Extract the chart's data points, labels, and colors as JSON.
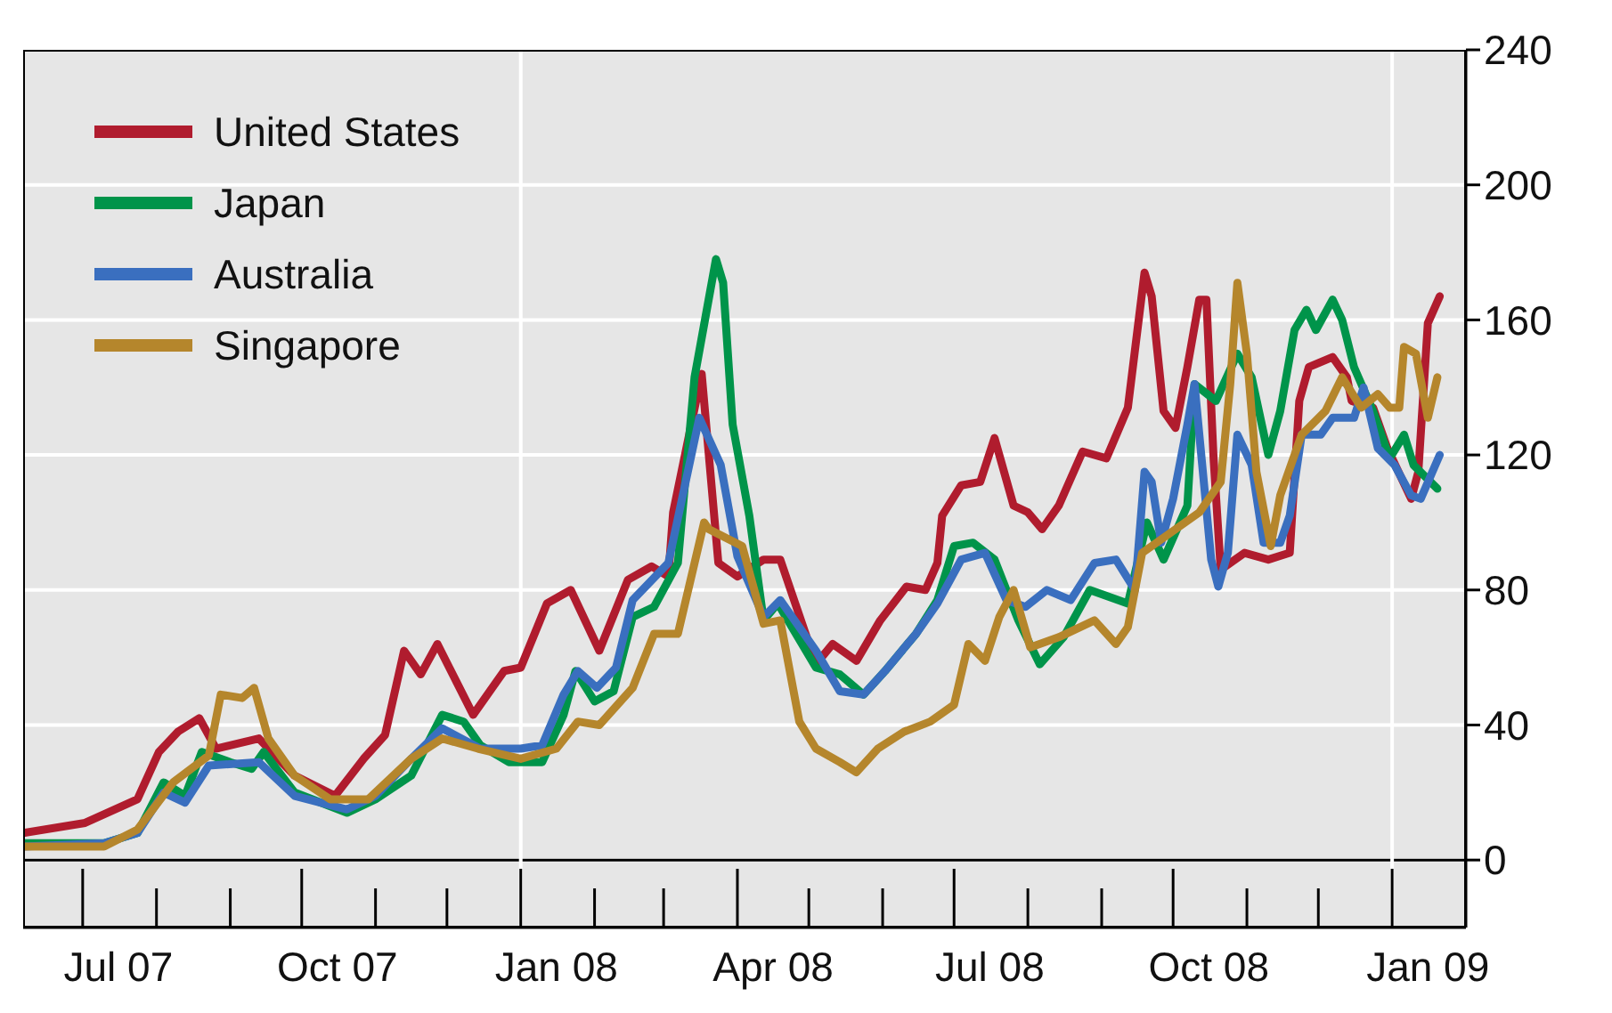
{
  "chart_data": {
    "type": "line",
    "xlim": [
      "2007-06-06",
      "2009-02-01"
    ],
    "ylim": [
      -20,
      240
    ],
    "yticks": [
      0,
      40,
      80,
      120,
      160,
      200,
      240
    ],
    "xticks": [
      {
        "value": "2007-07-16",
        "label": "Jul 07"
      },
      {
        "value": "2007-10-16",
        "label": "Oct 07"
      },
      {
        "value": "2008-01-16",
        "label": "Jan 08"
      },
      {
        "value": "2008-04-16",
        "label": "Apr 08"
      },
      {
        "value": "2008-07-16",
        "label": "Jul 08"
      },
      {
        "value": "2008-10-16",
        "label": "Oct 08"
      },
      {
        "value": "2009-01-16",
        "label": "Jan 09"
      }
    ],
    "grid": "y",
    "legend": "top left",
    "marker": "none",
    "line_style": "solid",
    "ref_lines": [
      {
        "axis": "y",
        "value": 0,
        "color": "#000000"
      },
      {
        "axis": "x",
        "value": "2008-01-01",
        "color": "#ffffff"
      },
      {
        "axis": "x",
        "value": "2009-01-01",
        "color": "#ffffff"
      }
    ],
    "series": [
      {
        "name": "United States",
        "color": "#b01c2e",
        "x": [
          "2007-06-06",
          "2007-07-02",
          "2007-07-24",
          "2007-08-02",
          "2007-08-10",
          "2007-08-19",
          "2007-08-26",
          "2007-09-13",
          "2007-09-28",
          "2007-10-15",
          "2007-10-27",
          "2007-11-05",
          "2007-11-13",
          "2007-11-20",
          "2007-11-27",
          "2007-12-12",
          "2007-12-25",
          "2008-01-01",
          "2008-01-12",
          "2008-01-22",
          "2008-02-03",
          "2008-02-15",
          "2008-02-25",
          "2008-03-03",
          "2008-03-05",
          "2008-03-17",
          "2008-03-24",
          "2008-04-01",
          "2008-04-12",
          "2008-04-19",
          "2008-05-04",
          "2008-05-11",
          "2008-05-21",
          "2008-05-31",
          "2008-06-11",
          "2008-06-19",
          "2008-06-24",
          "2008-06-26",
          "2008-07-04",
          "2008-07-12",
          "2008-07-18",
          "2008-07-26",
          "2008-08-01",
          "2008-08-07",
          "2008-08-14",
          "2008-08-24",
          "2008-09-03",
          "2008-09-12",
          "2008-09-19",
          "2008-09-22",
          "2008-09-27",
          "2008-10-02",
          "2008-10-07",
          "2008-10-12",
          "2008-10-15",
          "2008-10-18",
          "2008-10-21",
          "2008-10-31",
          "2008-11-10",
          "2008-11-19",
          "2008-11-23",
          "2008-11-27",
          "2008-12-07",
          "2008-12-13",
          "2008-12-15",
          "2008-12-24",
          "2008-12-30",
          "2009-01-09",
          "2009-01-12",
          "2009-01-16",
          "2009-01-21"
        ],
        "values": [
          8,
          11,
          18,
          32,
          38,
          42,
          33,
          36,
          25,
          19,
          30,
          37,
          62,
          55,
          64,
          43,
          56,
          57,
          76,
          80,
          62,
          83,
          87,
          84,
          103,
          144,
          88,
          84,
          89,
          89,
          58,
          64,
          59,
          71,
          81,
          80,
          88,
          102,
          111,
          112,
          125,
          105,
          103,
          98,
          105,
          121,
          119,
          134,
          174,
          167,
          133,
          128,
          146,
          166,
          166,
          119,
          86,
          91,
          89,
          91,
          136,
          146,
          149,
          143,
          136,
          134,
          122,
          107,
          115,
          159,
          167
        ]
      },
      {
        "name": "Japan",
        "color": "#00944a",
        "x": [
          "2007-06-06",
          "2007-07-10",
          "2007-07-24",
          "2007-08-04",
          "2007-08-13",
          "2007-08-20",
          "2007-09-01",
          "2007-09-10",
          "2007-09-15",
          "2007-09-28",
          "2007-10-20",
          "2007-11-01",
          "2007-11-16",
          "2007-11-29",
          "2007-12-08",
          "2007-12-15",
          "2007-12-27",
          "2008-01-10",
          "2008-01-19",
          "2008-01-24",
          "2008-02-01",
          "2008-02-09",
          "2008-02-17",
          "2008-02-26",
          "2008-03-07",
          "2008-03-14",
          "2008-03-23",
          "2008-03-26",
          "2008-03-30",
          "2008-04-06",
          "2008-04-12",
          "2008-04-18",
          "2008-05-04",
          "2008-05-14",
          "2008-05-24",
          "2008-06-02",
          "2008-06-15",
          "2008-06-24",
          "2008-07-01",
          "2008-07-09",
          "2008-07-18",
          "2008-07-28",
          "2008-08-06",
          "2008-08-16",
          "2008-08-27",
          "2008-09-12",
          "2008-09-20",
          "2008-09-27",
          "2008-10-07",
          "2008-10-10",
          "2008-10-19",
          "2008-10-28",
          "2008-11-03",
          "2008-11-10",
          "2008-11-15",
          "2008-11-21",
          "2008-11-26",
          "2008-11-30",
          "2008-12-07",
          "2008-12-11",
          "2008-12-16",
          "2008-12-24",
          "2008-12-31",
          "2009-01-06",
          "2009-01-10",
          "2009-01-20"
        ],
        "values": [
          5,
          5,
          8,
          23,
          19,
          32,
          29,
          27,
          32,
          20,
          14,
          18,
          25,
          43,
          41,
          34,
          29,
          29,
          43,
          56,
          47,
          50,
          72,
          75,
          88,
          143,
          178,
          171,
          129,
          102,
          71,
          76,
          57,
          55,
          49,
          56,
          67,
          77,
          93,
          94,
          89,
          71,
          58,
          66,
          80,
          76,
          100,
          89,
          105,
          141,
          136,
          150,
          143,
          120,
          133,
          157,
          163,
          157,
          166,
          160,
          146,
          133,
          119,
          126,
          117,
          110
        ]
      },
      {
        "name": "Australia",
        "color": "#3a6fbf",
        "x": [
          "2007-06-06",
          "2007-07-10",
          "2007-07-24",
          "2007-08-04",
          "2007-08-13",
          "2007-08-23",
          "2007-09-13",
          "2007-09-28",
          "2007-10-20",
          "2007-11-01",
          "2007-11-16",
          "2007-11-29",
          "2007-12-15",
          "2008-01-01",
          "2008-01-10",
          "2008-01-19",
          "2008-01-25",
          "2008-02-02",
          "2008-02-10",
          "2008-02-17",
          "2008-03-03",
          "2008-03-16",
          "2008-03-25",
          "2008-04-01",
          "2008-04-12",
          "2008-04-19",
          "2008-05-04",
          "2008-05-14",
          "2008-05-24",
          "2008-06-02",
          "2008-06-15",
          "2008-06-24",
          "2008-07-04",
          "2008-07-14",
          "2008-07-23",
          "2008-07-31",
          "2008-08-09",
          "2008-08-19",
          "2008-08-29",
          "2008-09-07",
          "2008-09-15",
          "2008-09-19",
          "2008-09-22",
          "2008-09-26",
          "2008-10-01",
          "2008-10-07",
          "2008-10-10",
          "2008-10-17",
          "2008-10-20",
          "2008-10-24",
          "2008-10-28",
          "2008-11-03",
          "2008-11-08",
          "2008-11-15",
          "2008-11-19",
          "2008-11-24",
          "2008-12-02",
          "2008-12-07",
          "2008-12-16",
          "2008-12-20",
          "2008-12-26",
          "2009-01-02",
          "2009-01-09",
          "2009-01-13",
          "2009-01-21"
        ],
        "values": [
          4,
          5,
          8,
          20,
          17,
          28,
          29,
          19,
          15,
          19,
          30,
          39,
          33,
          33,
          34,
          49,
          56,
          51,
          57,
          77,
          88,
          131,
          117,
          90,
          72,
          77,
          62,
          50,
          49,
          56,
          67,
          76,
          89,
          91,
          77,
          75,
          80,
          77,
          88,
          89,
          80,
          115,
          112,
          94,
          107,
          129,
          141,
          89,
          81,
          91,
          126,
          117,
          94,
          94,
          102,
          126,
          126,
          131,
          131,
          140,
          122,
          117,
          108,
          107,
          120
        ]
      },
      {
        "name": "Singapore",
        "color": "#b5862c",
        "x": [
          "2007-06-06",
          "2007-07-10",
          "2007-07-24",
          "2007-08-08",
          "2007-08-23",
          "2007-08-28",
          "2007-09-06",
          "2007-09-11",
          "2007-09-17",
          "2007-09-28",
          "2007-10-13",
          "2007-10-29",
          "2007-11-16",
          "2007-11-29",
          "2007-12-14",
          "2008-01-01",
          "2008-01-16",
          "2008-01-25",
          "2008-02-03",
          "2008-02-17",
          "2008-02-26",
          "2008-03-07",
          "2008-03-14",
          "2008-03-18",
          "2008-03-20",
          "2008-04-03",
          "2008-04-12",
          "2008-04-19",
          "2008-04-27",
          "2008-05-04",
          "2008-05-14",
          "2008-05-21",
          "2008-05-30",
          "2008-06-10",
          "2008-06-21",
          "2008-07-01",
          "2008-07-07",
          "2008-07-14",
          "2008-07-20",
          "2008-07-26",
          "2008-08-02",
          "2008-08-14",
          "2008-08-29",
          "2008-09-07",
          "2008-09-12",
          "2008-09-18",
          "2008-10-12",
          "2008-10-21",
          "2008-10-25",
          "2008-10-28",
          "2008-11-01",
          "2008-11-05",
          "2008-11-11",
          "2008-11-15",
          "2008-11-24",
          "2008-12-04",
          "2008-12-11",
          "2008-12-19",
          "2008-12-26",
          "2008-12-31",
          "2009-01-04",
          "2009-01-06",
          "2009-01-11",
          "2009-01-16",
          "2009-01-20"
        ],
        "values": [
          4,
          4,
          9,
          23,
          31,
          49,
          48,
          51,
          36,
          25,
          18,
          18,
          30,
          36,
          33,
          30,
          33,
          41,
          40,
          51,
          67,
          67,
          88,
          100,
          98,
          93,
          70,
          71,
          41,
          33,
          29,
          26,
          33,
          38,
          41,
          46,
          64,
          59,
          72,
          80,
          63,
          66,
          71,
          64,
          69,
          91,
          103,
          112,
          141,
          171,
          150,
          115,
          93,
          108,
          126,
          133,
          143,
          134,
          138,
          134,
          134,
          152,
          150,
          131,
          143
        ]
      }
    ]
  }
}
